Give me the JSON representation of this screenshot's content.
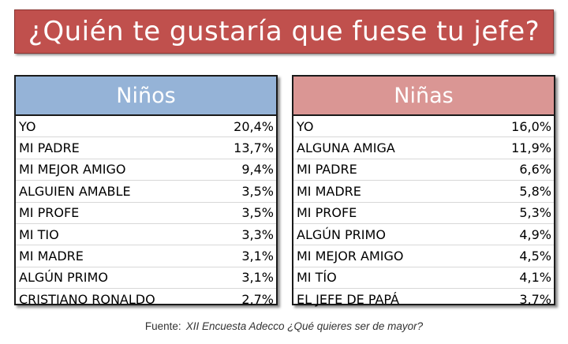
{
  "title": "¿Quién te gustaría que fuese tu jefe?",
  "colors": {
    "banner": "#c0504d",
    "ninos_header": "#95b3d7",
    "ninas_header": "#da9694"
  },
  "chart_data": [
    {
      "type": "table",
      "title": "Niños",
      "rows": [
        {
          "label": "YO",
          "value": "20,4%"
        },
        {
          "label": "MI PADRE",
          "value": "13,7%"
        },
        {
          "label": "MI MEJOR AMIGO",
          "value": "9,4%"
        },
        {
          "label": "ALGUIEN AMABLE",
          "value": "3,5%"
        },
        {
          "label": "MI PROFE",
          "value": "3,5%"
        },
        {
          "label": "MI TIO",
          "value": "3,3%"
        },
        {
          "label": "MI MADRE",
          "value": "3,1%"
        },
        {
          "label": "ALGÚN PRIMO",
          "value": "3,1%"
        },
        {
          "label": "CRISTIANO RONALDO",
          "value": "2,7%"
        }
      ]
    },
    {
      "type": "table",
      "title": "Niñas",
      "rows": [
        {
          "label": "YO",
          "value": "16,0%"
        },
        {
          "label": "ALGUNA AMIGA",
          "value": "11,9%"
        },
        {
          "label": "MI PADRE",
          "value": "6,6%"
        },
        {
          "label": "MI MADRE",
          "value": "5,8%"
        },
        {
          "label": "MI PROFE",
          "value": "5,3%"
        },
        {
          "label": "ALGÚN PRIMO",
          "value": "4,9%"
        },
        {
          "label": "MI MEJOR AMIGO",
          "value": "4,5%"
        },
        {
          "label": "MI TÍO",
          "value": "4,1%"
        },
        {
          "label": "EL JEFE DE PAPÁ",
          "value": "3,7%"
        }
      ]
    }
  ],
  "source": {
    "label": "Fuente:",
    "text": "XII Encuesta Adecco ¿Qué quieres ser de mayor?"
  }
}
